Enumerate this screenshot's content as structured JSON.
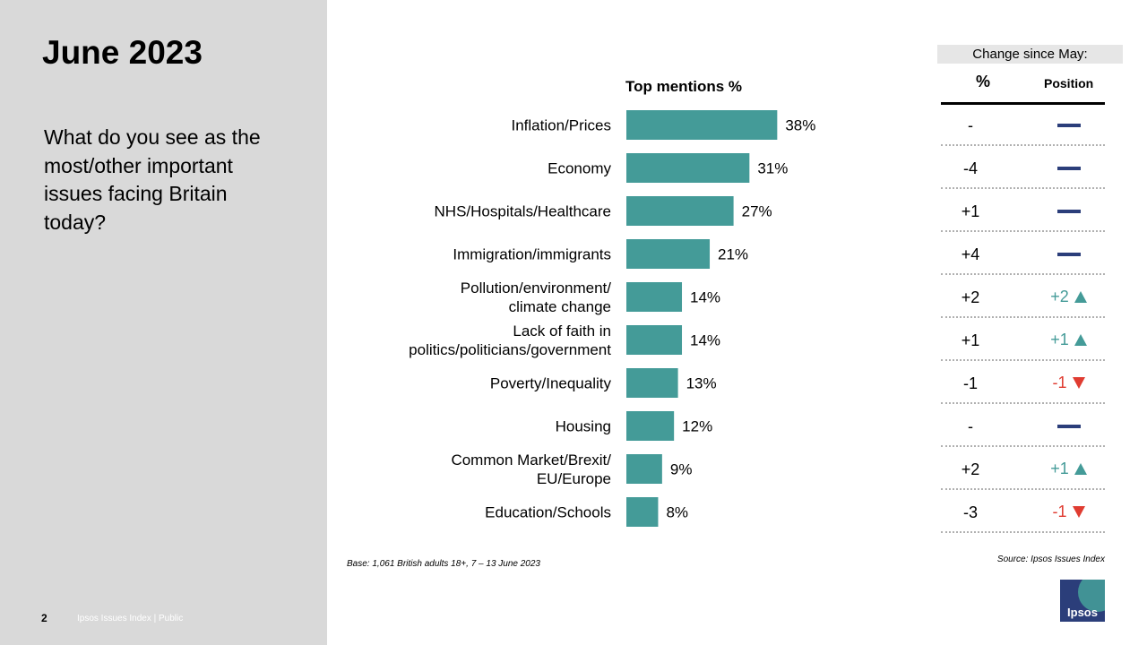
{
  "slide": {
    "title": "June 2023",
    "question": "What do you see as the most/other important issues facing Britain today?",
    "page_number": "2",
    "footer": "Ipsos Issues Index | Public",
    "base_note": "Base: 1,061 British adults 18+, 7 – 13 June 2023",
    "source_note": "Source: Ipsos Issues Index",
    "logo_text": "Ipsos"
  },
  "colors": {
    "bar": "#449b98",
    "up": "#449b98",
    "down": "#e03c31",
    "no_change_dash": "#2b3e7a",
    "left_panel": "#d9d9d9"
  },
  "chart_data": {
    "type": "bar",
    "orientation": "horizontal",
    "title": "Top mentions %",
    "categories": [
      [
        "Inflation/Prices"
      ],
      [
        "Economy"
      ],
      [
        "NHS/Hospitals/Healthcare"
      ],
      [
        "Immigration/immigrants"
      ],
      [
        "Pollution/environment/",
        "climate change"
      ],
      [
        "Lack of faith in",
        "politics/politicians/government"
      ],
      [
        "Poverty/Inequality"
      ],
      [
        "Housing"
      ],
      [
        "Common Market/Brexit/",
        "EU/Europe"
      ],
      [
        "Education/Schools"
      ]
    ],
    "values": [
      38,
      31,
      27,
      21,
      14,
      14,
      13,
      12,
      9,
      8
    ],
    "value_labels": [
      "38%",
      "31%",
      "27%",
      "21%",
      "14%",
      "14%",
      "13%",
      "12%",
      "9%",
      "8%"
    ]
  },
  "change_table": {
    "header": "Change since May:",
    "col_pct": "%",
    "col_position": "Position",
    "rows": [
      {
        "pct": "-",
        "pos_text": "",
        "pos_icon": "dash"
      },
      {
        "pct": "-4",
        "pos_text": "",
        "pos_icon": "dash"
      },
      {
        "pct": "+1",
        "pos_text": "",
        "pos_icon": "dash"
      },
      {
        "pct": "+4",
        "pos_text": "",
        "pos_icon": "dash"
      },
      {
        "pct": "+2",
        "pos_text": "+2",
        "pos_icon": "up"
      },
      {
        "pct": "+1",
        "pos_text": "+1",
        "pos_icon": "up"
      },
      {
        "pct": "-1",
        "pos_text": "-1",
        "pos_icon": "down"
      },
      {
        "pct": "-",
        "pos_text": "",
        "pos_icon": "dash"
      },
      {
        "pct": "+2",
        "pos_text": "+1",
        "pos_icon": "up"
      },
      {
        "pct": "-3",
        "pos_text": "-1",
        "pos_icon": "down"
      }
    ]
  }
}
